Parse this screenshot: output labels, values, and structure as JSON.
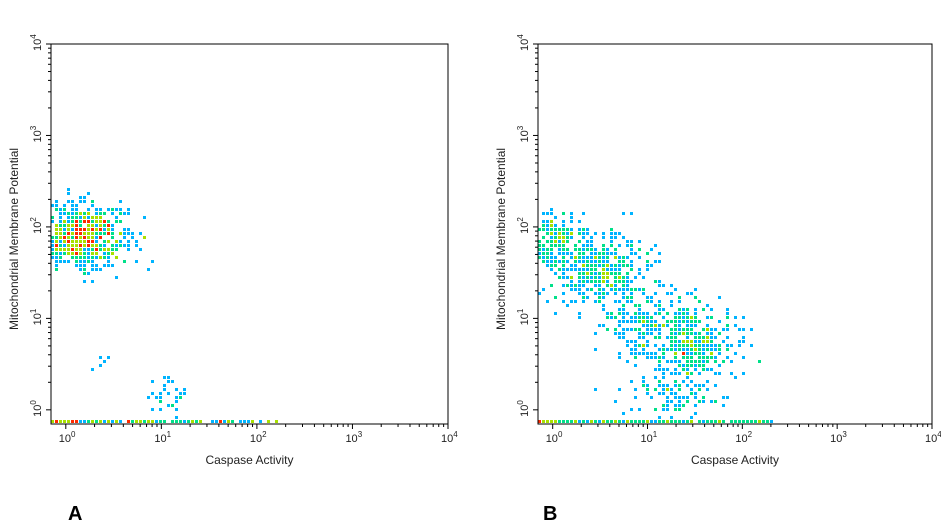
{
  "panels": [
    {
      "letter": "A"
    },
    {
      "letter": "B"
    }
  ],
  "chart_data": [
    {
      "type": "scatter",
      "panel": "A",
      "xlabel": "Caspase Activity",
      "ylabel": "Mitochondrial Membrane Potential",
      "xscale": "log",
      "yscale": "log",
      "xlim": [
        0.7,
        10000
      ],
      "ylim": [
        0.7,
        10000
      ],
      "x_ticks": [
        1,
        10,
        100,
        1000,
        10000
      ],
      "y_ticks": [
        1,
        10,
        100,
        1000,
        10000
      ],
      "x_tick_labels": [
        {
          "base": "10",
          "exp": "0"
        },
        {
          "base": "10",
          "exp": "1"
        },
        {
          "base": "10",
          "exp": "2"
        },
        {
          "base": "10",
          "exp": "3"
        },
        {
          "base": "10",
          "exp": "4"
        }
      ],
      "y_tick_labels": [
        {
          "base": "10",
          "exp": "0"
        },
        {
          "base": "10",
          "exp": "1"
        },
        {
          "base": "10",
          "exp": "2"
        },
        {
          "base": "10",
          "exp": "3"
        },
        {
          "base": "10",
          "exp": "4"
        }
      ],
      "grid": false,
      "density_colormap": [
        "#0000cc",
        "#00b4ff",
        "#00e08a",
        "#a8e000",
        "#ff2a00"
      ],
      "clusters": [
        {
          "center": [
            1.5,
            80
          ],
          "spread_log": [
            0.24,
            0.17
          ],
          "count": 650
        },
        {
          "center": [
            12,
            1.4
          ],
          "spread_log": [
            0.15,
            0.12
          ],
          "count": 30
        },
        {
          "center": [
            2.5,
            3.0
          ],
          "spread_log": [
            0.1,
            0.08
          ],
          "count": 5
        }
      ],
      "axis_band": {
        "y": 0.7,
        "x_range": [
          0.7,
          180
        ],
        "count": 130
      }
    },
    {
      "type": "scatter",
      "panel": "B",
      "xlabel": "Caspase Activity",
      "ylabel": "Mitochondrial Membrane Potential",
      "xscale": "log",
      "yscale": "log",
      "xlim": [
        0.7,
        10000
      ],
      "ylim": [
        0.7,
        10000
      ],
      "x_ticks": [
        1,
        10,
        100,
        1000,
        10000
      ],
      "y_ticks": [
        1,
        10,
        100,
        1000,
        10000
      ],
      "x_tick_labels": [
        {
          "base": "10",
          "exp": "0"
        },
        {
          "base": "10",
          "exp": "1"
        },
        {
          "base": "10",
          "exp": "2"
        },
        {
          "base": "10",
          "exp": "3"
        },
        {
          "base": "10",
          "exp": "4"
        }
      ],
      "y_tick_labels": [
        {
          "base": "10",
          "exp": "0"
        },
        {
          "base": "10",
          "exp": "1"
        },
        {
          "base": "10",
          "exp": "2"
        },
        {
          "base": "10",
          "exp": "3"
        },
        {
          "base": "10",
          "exp": "4"
        }
      ],
      "grid": false,
      "density_colormap": [
        "#0000cc",
        "#00b4ff",
        "#00e08a",
        "#a8e000",
        "#ff2a00"
      ],
      "clusters": [
        {
          "center": [
            1.0,
            75
          ],
          "spread_log": [
            0.14,
            0.14
          ],
          "count": 180
        },
        {
          "center": [
            3.0,
            35
          ],
          "spread_log": [
            0.28,
            0.2
          ],
          "count": 420
        },
        {
          "center": [
            8,
            9
          ],
          "spread_log": [
            0.2,
            0.2
          ],
          "count": 160
        },
        {
          "center": [
            30,
            5
          ],
          "spread_log": [
            0.22,
            0.25
          ],
          "count": 420
        },
        {
          "center": [
            20,
            1.5
          ],
          "spread_log": [
            0.28,
            0.14
          ],
          "count": 80
        }
      ],
      "axis_band": {
        "y": 0.7,
        "x_range": [
          0.7,
          200
        ],
        "count": 160
      }
    }
  ]
}
